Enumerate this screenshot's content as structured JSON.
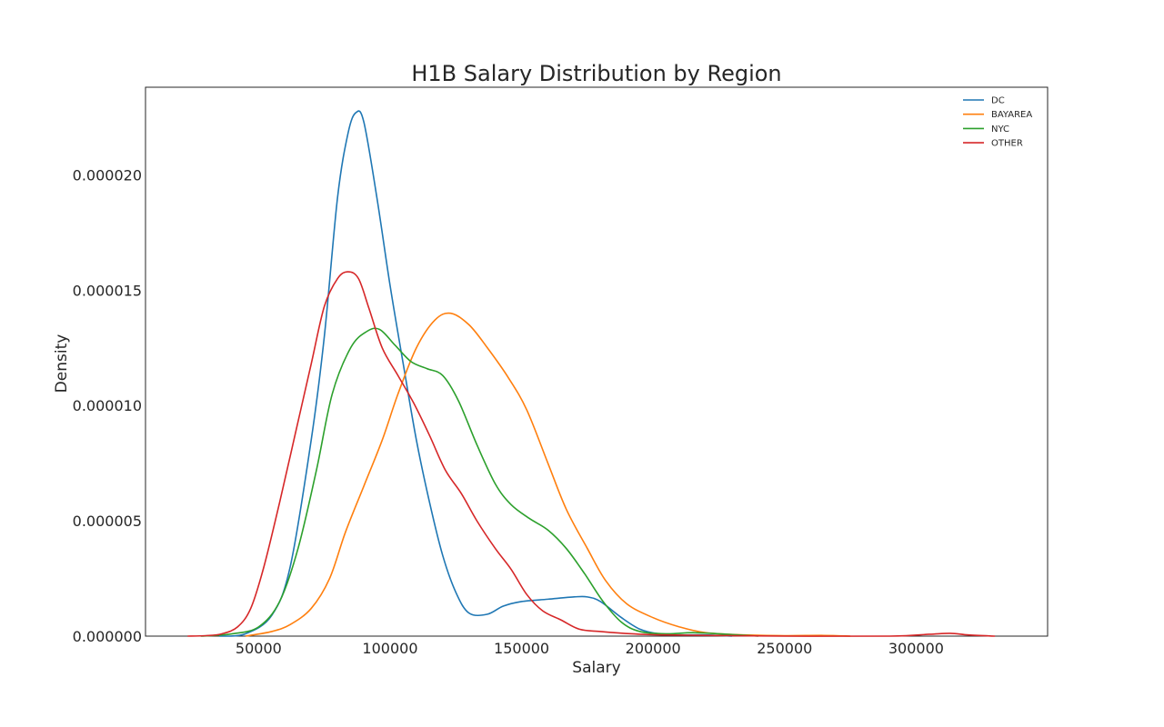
{
  "chart_data": {
    "type": "line",
    "title": "H1B Salary Distribution by Region",
    "xlabel": "Salary",
    "ylabel": "Density",
    "xlim": [
      7000,
      350000
    ],
    "ylim": [
      0,
      2.38e-05
    ],
    "x_ticks": [
      50000,
      100000,
      150000,
      200000,
      250000,
      300000
    ],
    "x_tick_labels": [
      "50000",
      "100000",
      "150000",
      "200000",
      "250000",
      "300000"
    ],
    "y_ticks": [
      0,
      5e-06,
      1e-05,
      1.5e-05,
      2e-05
    ],
    "y_tick_labels": [
      "0.000000",
      "0.000005",
      "0.000010",
      "0.000015",
      "0.000020"
    ],
    "grid": false,
    "legend_position": "top-right",
    "series": [
      {
        "name": "DC",
        "color": "#1f77b4",
        "points": [
          [
            35000,
            0
          ],
          [
            45000,
            1e-07
          ],
          [
            55000,
            9e-07
          ],
          [
            62000,
            3e-06
          ],
          [
            70000,
            8.5e-06
          ],
          [
            75000,
            1.3e-05
          ],
          [
            80000,
            1.9e-05
          ],
          [
            84000,
            2.18e-05
          ],
          [
            87000,
            2.27e-05
          ],
          [
            90000,
            2.23e-05
          ],
          [
            95000,
            1.9e-05
          ],
          [
            100000,
            1.52e-05
          ],
          [
            105000,
            1.18e-05
          ],
          [
            110000,
            8.5e-06
          ],
          [
            115000,
            5.8e-06
          ],
          [
            120000,
            3.5e-06
          ],
          [
            125000,
            1.9e-06
          ],
          [
            130000,
            1e-06
          ],
          [
            137000,
            9.5e-07
          ],
          [
            143000,
            1.3e-06
          ],
          [
            150000,
            1.5e-06
          ],
          [
            160000,
            1.6e-06
          ],
          [
            170000,
            1.7e-06
          ],
          [
            175000,
            1.7e-06
          ],
          [
            180000,
            1.5e-06
          ],
          [
            188000,
            8e-07
          ],
          [
            195000,
            3e-07
          ],
          [
            202000,
            1e-07
          ],
          [
            210000,
            5e-08
          ],
          [
            220000,
            5e-08
          ],
          [
            230000,
            0
          ]
        ]
      },
      {
        "name": "BAYAREA",
        "color": "#ff7f0e",
        "points": [
          [
            45000,
            0
          ],
          [
            55000,
            2e-07
          ],
          [
            62000,
            5e-07
          ],
          [
            70000,
            1.2e-06
          ],
          [
            77000,
            2.5e-06
          ],
          [
            83000,
            4.5e-06
          ],
          [
            90000,
            6.5e-06
          ],
          [
            97000,
            8.5e-06
          ],
          [
            103000,
            1.05e-05
          ],
          [
            110000,
            1.25e-05
          ],
          [
            117000,
            1.37e-05
          ],
          [
            123000,
            1.4e-05
          ],
          [
            130000,
            1.35e-05
          ],
          [
            137000,
            1.25e-05
          ],
          [
            145000,
            1.12e-05
          ],
          [
            152000,
            9.8e-06
          ],
          [
            160000,
            7.5e-06
          ],
          [
            167000,
            5.5e-06
          ],
          [
            175000,
            3.8e-06
          ],
          [
            182000,
            2.4e-06
          ],
          [
            190000,
            1.4e-06
          ],
          [
            200000,
            8e-07
          ],
          [
            210000,
            4e-07
          ],
          [
            220000,
            1.5e-07
          ],
          [
            235000,
            5e-08
          ],
          [
            250000,
            2e-08
          ],
          [
            265000,
            3e-08
          ],
          [
            275000,
            0
          ]
        ]
      },
      {
        "name": "NYC",
        "color": "#2ca02c",
        "points": [
          [
            28000,
            0
          ],
          [
            40000,
            1e-07
          ],
          [
            50000,
            4e-07
          ],
          [
            58000,
            1.5e-06
          ],
          [
            65000,
            3.8e-06
          ],
          [
            72000,
            7.2e-06
          ],
          [
            78000,
            1.05e-05
          ],
          [
            85000,
            1.25e-05
          ],
          [
            91000,
            1.32e-05
          ],
          [
            96000,
            1.33e-05
          ],
          [
            102000,
            1.26e-05
          ],
          [
            108000,
            1.19e-05
          ],
          [
            114000,
            1.16e-05
          ],
          [
            120000,
            1.13e-05
          ],
          [
            126000,
            1.02e-05
          ],
          [
            133000,
            8.3e-06
          ],
          [
            140000,
            6.6e-06
          ],
          [
            146000,
            5.7e-06
          ],
          [
            153000,
            5.1e-06
          ],
          [
            160000,
            4.6e-06
          ],
          [
            167000,
            3.8e-06
          ],
          [
            174000,
            2.7e-06
          ],
          [
            181000,
            1.5e-06
          ],
          [
            188000,
            6e-07
          ],
          [
            195000,
            2e-07
          ],
          [
            205000,
            1e-07
          ],
          [
            215000,
            1.5e-07
          ],
          [
            225000,
            1e-07
          ],
          [
            240000,
            0
          ]
        ]
      },
      {
        "name": "OTHER",
        "color": "#d62728",
        "points": [
          [
            23000,
            0
          ],
          [
            30000,
            2e-08
          ],
          [
            36000,
            1e-07
          ],
          [
            42000,
            4e-07
          ],
          [
            47000,
            1.2e-06
          ],
          [
            52000,
            3e-06
          ],
          [
            58000,
            5.8e-06
          ],
          [
            64000,
            8.8e-06
          ],
          [
            70000,
            1.18e-05
          ],
          [
            75000,
            1.43e-05
          ],
          [
            80000,
            1.55e-05
          ],
          [
            84000,
            1.58e-05
          ],
          [
            88000,
            1.55e-05
          ],
          [
            92000,
            1.42e-05
          ],
          [
            97000,
            1.25e-05
          ],
          [
            103000,
            1.13e-05
          ],
          [
            109000,
            1.01e-05
          ],
          [
            115000,
            8.7e-06
          ],
          [
            121000,
            7.2e-06
          ],
          [
            127000,
            6.2e-06
          ],
          [
            133000,
            5e-06
          ],
          [
            140000,
            3.8e-06
          ],
          [
            146000,
            2.9e-06
          ],
          [
            152000,
            1.8e-06
          ],
          [
            158000,
            1.1e-06
          ],
          [
            165000,
            7e-07
          ],
          [
            172000,
            3e-07
          ],
          [
            180000,
            2e-07
          ],
          [
            192000,
            1e-07
          ],
          [
            205000,
            5e-08
          ],
          [
            250000,
            0
          ],
          [
            290000,
            0
          ],
          [
            305000,
            8e-08
          ],
          [
            313000,
            1.2e-07
          ],
          [
            320000,
            5e-08
          ],
          [
            330000,
            0
          ]
        ]
      }
    ]
  }
}
